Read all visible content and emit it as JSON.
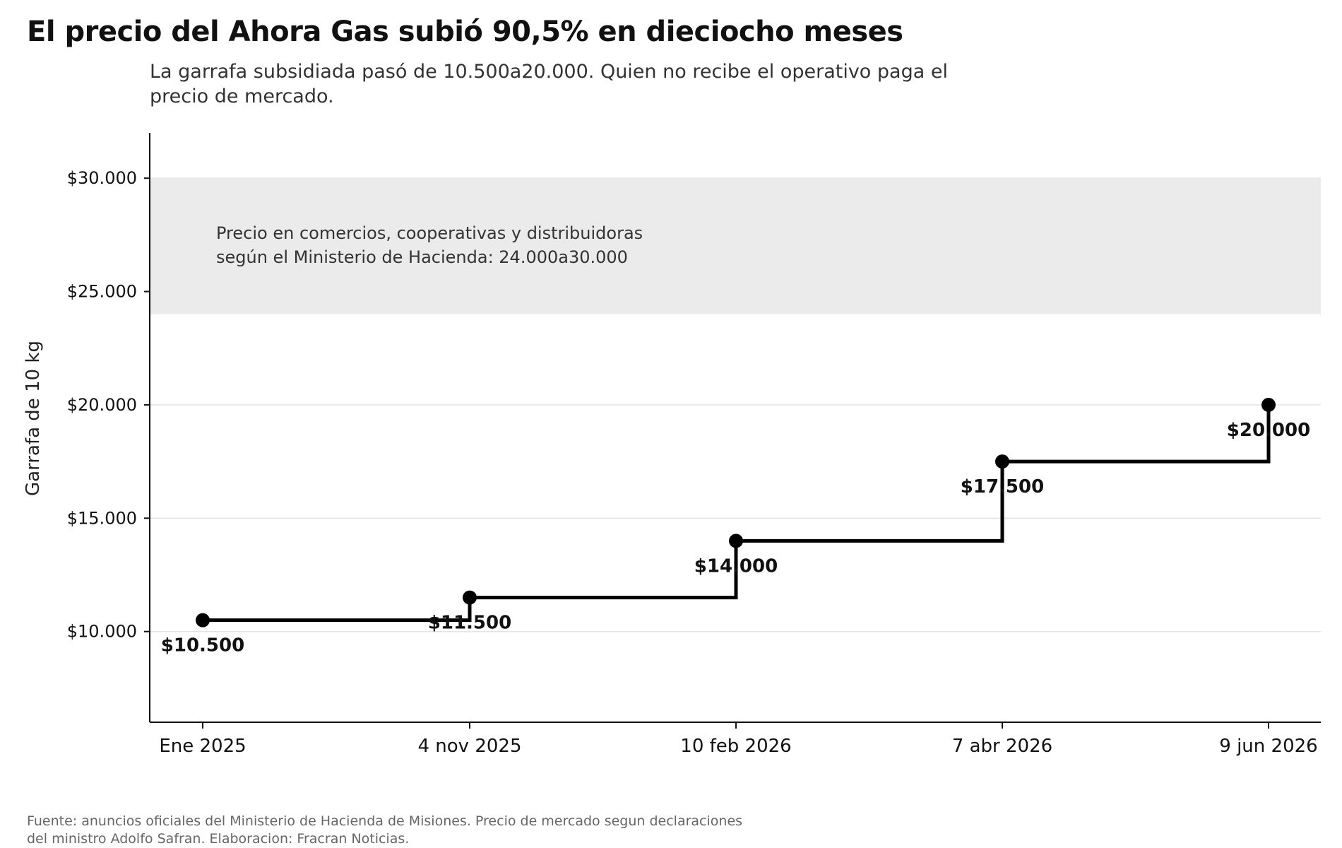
{
  "title": "El precio del Ahora Gas subió 90,5% en dieciocho meses",
  "subtitle": "La garrafa subsidiada pasó de 10.500a20.000. Quien no recibe el operativo paga el precio de mercado.",
  "footer": "Fuente: anuncios oficiales del Ministerio de Hacienda de Misiones. Precio de mercado segun declaraciones del ministro Adolfo Safran. Elaboracion: Fracran Noticias.",
  "chart_data": {
    "type": "line",
    "step": "post",
    "categories": [
      "Ene 2025",
      "4 nov 2025",
      "10 feb 2026",
      "7 abr 2026",
      "9 jun 2026"
    ],
    "series": [
      {
        "values": [
          10500,
          11500,
          14000,
          17500,
          20000
        ],
        "labels": [
          "$10.500",
          "$11.500",
          "$14.000",
          "$17.500",
          "$20.000"
        ],
        "color": "#000000"
      }
    ],
    "ylabel": "Garrafa de 10 kg",
    "ylim": [
      6000,
      32000
    ],
    "yticks": [
      10000,
      15000,
      20000,
      25000,
      30000
    ],
    "ytick_labels": [
      "$10.000",
      "$15.000",
      "$20.000",
      "$25.000",
      "$30.000"
    ],
    "grid": true,
    "band": {
      "from": 24000,
      "to": 30000,
      "color": "#ebebeb",
      "label_line1": "Precio en comercios, cooperativas y distribuidoras",
      "label_line2": "según el Ministerio de Hacienda: 24.000a30.000"
    }
  }
}
